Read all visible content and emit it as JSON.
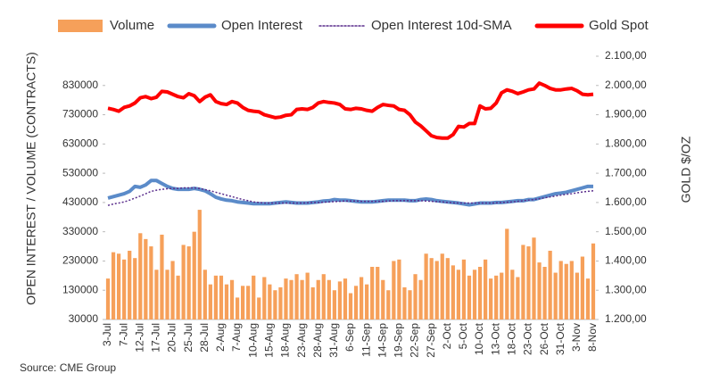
{
  "chart_data": {
    "type": "combo",
    "categories": [
      "3-Jul",
      null,
      null,
      "7-Jul",
      null,
      null,
      "12-Jul",
      null,
      null,
      "17-Jul",
      null,
      null,
      "20-Jul",
      null,
      null,
      "25-Jul",
      null,
      null,
      "28-Jul",
      null,
      null,
      "2-Aug",
      null,
      null,
      "7-Aug",
      null,
      null,
      "10-Aug",
      null,
      null,
      "15-Aug",
      null,
      null,
      "18-Aug",
      null,
      null,
      "23-Aug",
      null,
      null,
      "28-Aug",
      null,
      null,
      "31-Aug",
      null,
      null,
      "6-Sep",
      null,
      null,
      "11-Sep",
      null,
      null,
      "14-Sep",
      null,
      null,
      "19-Sep",
      null,
      null,
      "22-Sep",
      null,
      null,
      "27-Sep",
      null,
      null,
      "2-Oct",
      null,
      null,
      "5-Oct",
      null,
      null,
      "10-Oct",
      null,
      null,
      "13-Oct",
      null,
      null,
      "18-Oct",
      null,
      null,
      "23-Oct",
      null,
      null,
      "26-Oct",
      null,
      null,
      "31-Oct",
      null,
      null,
      "3-Nov",
      null,
      null,
      "8-Nov"
    ],
    "series": [
      {
        "name": "Volume",
        "type": "bar",
        "color": "#f6a05a",
        "values": [
          170000,
          260000,
          255000,
          235000,
          265000,
          240000,
          325000,
          305000,
          280000,
          200000,
          320000,
          200000,
          230000,
          180000,
          285000,
          280000,
          330000,
          405000,
          200000,
          150000,
          180000,
          180000,
          150000,
          165000,
          105000,
          145000,
          145000,
          180000,
          105000,
          175000,
          150000,
          130000,
          140000,
          170000,
          165000,
          185000,
          165000,
          190000,
          140000,
          165000,
          185000,
          165000,
          130000,
          160000,
          170000,
          120000,
          145000,
          175000,
          150000,
          210000,
          210000,
          165000,
          130000,
          230000,
          235000,
          140000,
          130000,
          185000,
          165000,
          255000,
          240000,
          230000,
          255000,
          240000,
          215000,
          200000,
          235000,
          180000,
          200000,
          210000,
          235000,
          170000,
          180000,
          190000,
          340000,
          200000,
          175000,
          285000,
          280000,
          310000,
          225000,
          210000,
          265000,
          190000,
          230000,
          220000,
          230000,
          190000,
          245000,
          170000,
          290000
        ]
      },
      {
        "name": "Open Interest",
        "type": "line",
        "color": "#5b8bc9",
        "values": [
          445000,
          450000,
          455000,
          460000,
          468000,
          485000,
          482000,
          490000,
          505000,
          505000,
          495000,
          485000,
          478000,
          475000,
          475000,
          475000,
          478000,
          475000,
          470000,
          460000,
          448000,
          442000,
          438000,
          436000,
          432000,
          430000,
          428000,
          426000,
          426000,
          426000,
          426000,
          428000,
          430000,
          432000,
          430000,
          428000,
          428000,
          428000,
          430000,
          432000,
          435000,
          436000,
          440000,
          438000,
          438000,
          436000,
          434000,
          432000,
          432000,
          432000,
          434000,
          436000,
          438000,
          438000,
          438000,
          438000,
          436000,
          436000,
          440000,
          442000,
          440000,
          436000,
          434000,
          432000,
          430000,
          428000,
          425000,
          422000,
          425000,
          428000,
          428000,
          428000,
          430000,
          430000,
          432000,
          434000,
          436000,
          436000,
          440000,
          440000,
          445000,
          450000,
          455000,
          460000,
          462000,
          465000,
          470000,
          475000,
          480000,
          485000,
          485000
        ]
      },
      {
        "name": "Open Interest 10d-SMA",
        "type": "line",
        "line_style": "dotted",
        "color": "#5a2d8c",
        "values": [
          420000,
          425000,
          428000,
          432000,
          438000,
          445000,
          452000,
          460000,
          468000,
          472000,
          475000,
          477000,
          478000,
          478000,
          480000,
          480000,
          480000,
          478000,
          474000,
          470000,
          465000,
          460000,
          455000,
          450000,
          445000,
          440000,
          436000,
          432000,
          430000,
          428000,
          428000,
          428000,
          428000,
          428000,
          428000,
          428000,
          428000,
          429000,
          430000,
          430000,
          431000,
          432000,
          433000,
          434000,
          435000,
          435000,
          435000,
          434000,
          434000,
          434000,
          434000,
          434000,
          435000,
          436000,
          436000,
          436000,
          436000,
          436000,
          436000,
          435000,
          434000,
          433000,
          432000,
          430000,
          429000,
          428000,
          428000,
          428000,
          428000,
          428000,
          428000,
          428000,
          429000,
          430000,
          431000,
          432000,
          434000,
          436000,
          438000,
          440000,
          443000,
          446000,
          449000,
          452000,
          455000,
          458000,
          460000,
          463000,
          466000,
          468000,
          470000
        ]
      },
      {
        "name": "Gold Spot",
        "type": "line",
        "axis": "y2",
        "color": "#ff0000",
        "values": [
          1922,
          1918,
          1912,
          1925,
          1930,
          1940,
          1958,
          1962,
          1955,
          1960,
          1980,
          1978,
          1970,
          1962,
          1958,
          1972,
          1965,
          1945,
          1960,
          1968,
          1945,
          1938,
          1935,
          1945,
          1940,
          1925,
          1915,
          1912,
          1910,
          1900,
          1895,
          1890,
          1892,
          1898,
          1900,
          1918,
          1920,
          1918,
          1925,
          1940,
          1945,
          1942,
          1940,
          1935,
          1920,
          1918,
          1922,
          1920,
          1915,
          1912,
          1925,
          1935,
          1932,
          1930,
          1918,
          1915,
          1900,
          1875,
          1862,
          1845,
          1828,
          1822,
          1820,
          1820,
          1832,
          1860,
          1858,
          1870,
          1870,
          1930,
          1920,
          1922,
          1940,
          1975,
          1985,
          1980,
          1972,
          1978,
          1985,
          1988,
          2008,
          2000,
          1990,
          1985,
          1985,
          1988,
          1990,
          1982,
          1970,
          1968,
          1970
        ]
      }
    ],
    "ylim": [
      30000,
      930000
    ],
    "yticks": [
      30000,
      130000,
      230000,
      330000,
      430000,
      530000,
      630000,
      730000,
      830000
    ],
    "y2lim": [
      1200,
      2100
    ],
    "y2ticks": [
      {
        "value": 1200,
        "label": "1.200,00"
      },
      {
        "value": 1300,
        "label": "1.300,00"
      },
      {
        "value": 1400,
        "label": "1.400,00"
      },
      {
        "value": 1500,
        "label": "1.500,00"
      },
      {
        "value": 1600,
        "label": "1.600,00"
      },
      {
        "value": 1700,
        "label": "1.700,00"
      },
      {
        "value": 1800,
        "label": "1.800,00"
      },
      {
        "value": 1900,
        "label": "1.900,00"
      },
      {
        "value": 2000,
        "label": "2.000,00"
      },
      {
        "value": 2100,
        "label": "2.100,00"
      }
    ],
    "ylabel": "OPEN INTEREST / VOLUME (CONTRACTS)",
    "y2label": "GOLD $/OZ",
    "source": "Source: CME Group",
    "legend": "top"
  }
}
